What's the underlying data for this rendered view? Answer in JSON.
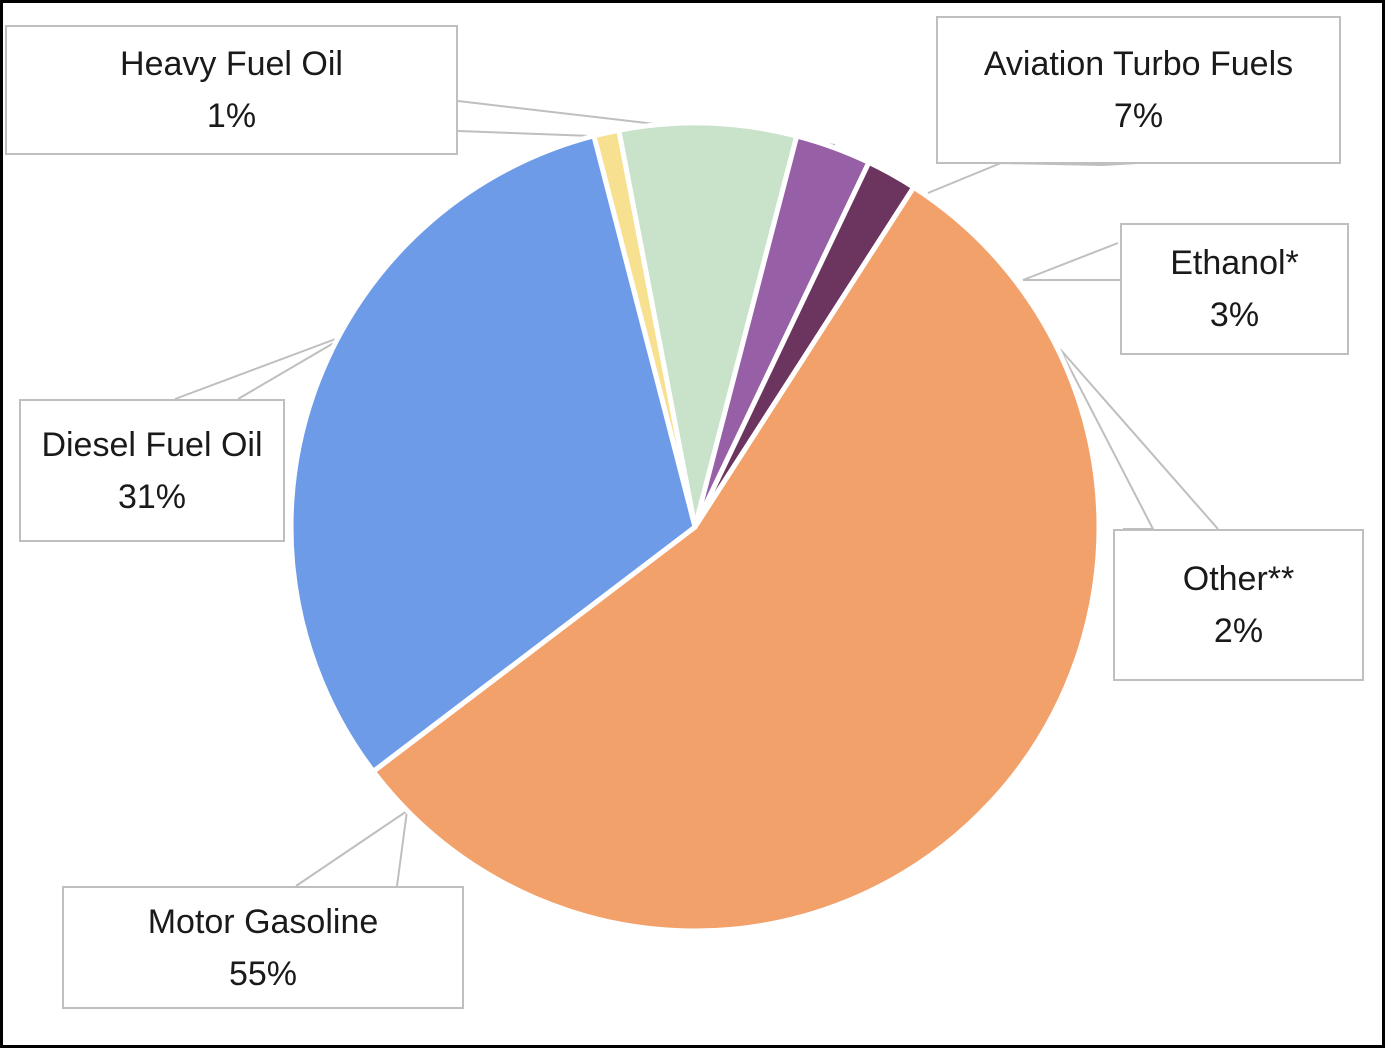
{
  "chart_data": {
    "type": "pie",
    "title": "",
    "slices": [
      {
        "name": "Heavy Fuel Oil",
        "value": 1,
        "label": "1%",
        "color": "#f7e08f"
      },
      {
        "name": "Aviation Turbo Fuels",
        "value": 7,
        "label": "7%",
        "color": "#c9e2ca"
      },
      {
        "name": "Ethanol*",
        "value": 3,
        "label": "3%",
        "color": "#965fa6"
      },
      {
        "name": "Other**",
        "value": 2,
        "label": "2%",
        "color": "#6c3560"
      },
      {
        "name": "Motor Gasoline",
        "value": 55,
        "label": "55%",
        "color": "#f2a16b"
      },
      {
        "name": "Diesel Fuel Oil",
        "value": 31,
        "label": "31%",
        "color": "#6d9be8"
      }
    ],
    "legend": "none",
    "data_labels": "callout boxes with leader lines"
  }
}
